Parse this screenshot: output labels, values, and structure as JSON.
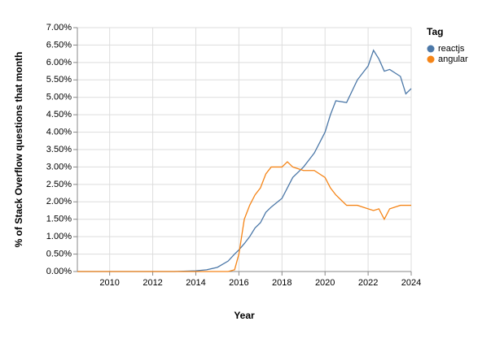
{
  "chart_data": {
    "type": "line",
    "x_label": "Year",
    "y_label": "% of Stack Overflow questions that month",
    "legend_title": "Tag",
    "legend_position": "top-right",
    "grid": true,
    "x": [
      2008.5,
      2013,
      2014,
      2014.5,
      2015,
      2015.5,
      2015.8,
      2016,
      2016.25,
      2016.5,
      2016.75,
      2017,
      2017.25,
      2017.5,
      2018,
      2018.25,
      2018.5,
      2019,
      2019.5,
      2020,
      2020.25,
      2020.5,
      2021,
      2021.5,
      2022,
      2022.25,
      2022.5,
      2022.75,
      2023,
      2023.5,
      2023.75,
      2024
    ],
    "series": [
      {
        "name": "reactjs",
        "color": "#4c78a8",
        "values": [
          0,
          0,
          0.02,
          0.05,
          0.12,
          0.3,
          0.5,
          0.62,
          0.8,
          1.0,
          1.25,
          1.4,
          1.7,
          1.85,
          2.1,
          2.4,
          2.7,
          3.0,
          3.4,
          4.0,
          4.5,
          4.9,
          4.85,
          5.5,
          5.9,
          6.35,
          6.1,
          5.75,
          5.8,
          5.6,
          5.1,
          5.25
        ]
      },
      {
        "name": "angular",
        "color": "#f58518",
        "values": [
          0,
          0,
          0,
          0,
          0,
          0,
          0.05,
          0.5,
          1.5,
          1.9,
          2.2,
          2.4,
          2.8,
          3.0,
          3.0,
          3.15,
          3.0,
          2.9,
          2.9,
          2.7,
          2.4,
          2.2,
          1.9,
          1.9,
          1.8,
          1.75,
          1.8,
          1.5,
          1.8,
          1.9,
          1.9,
          1.9
        ]
      }
    ],
    "xlim": [
      2008.5,
      2024
    ],
    "xticks": [
      2010,
      2012,
      2014,
      2016,
      2018,
      2020,
      2022,
      2024
    ],
    "ylim": [
      0,
      7
    ],
    "yticks": [
      {
        "value": 0,
        "label": "0.00%"
      },
      {
        "value": 0.5,
        "label": "0.50%"
      },
      {
        "value": 1,
        "label": "1.00%"
      },
      {
        "value": 1.5,
        "label": "1.50%"
      },
      {
        "value": 2,
        "label": "2.00%"
      },
      {
        "value": 2.5,
        "label": "2.50%"
      },
      {
        "value": 3,
        "label": "3.00%"
      },
      {
        "value": 3.5,
        "label": "3.50%"
      },
      {
        "value": 4,
        "label": "4.00%"
      },
      {
        "value": 4.5,
        "label": "4.50%"
      },
      {
        "value": 5,
        "label": "5.00%"
      },
      {
        "value": 5.5,
        "label": "5.50%"
      },
      {
        "value": 6,
        "label": "6.00%"
      },
      {
        "value": 6.5,
        "label": "6.50%"
      },
      {
        "value": 7,
        "label": "7.00%"
      }
    ]
  }
}
